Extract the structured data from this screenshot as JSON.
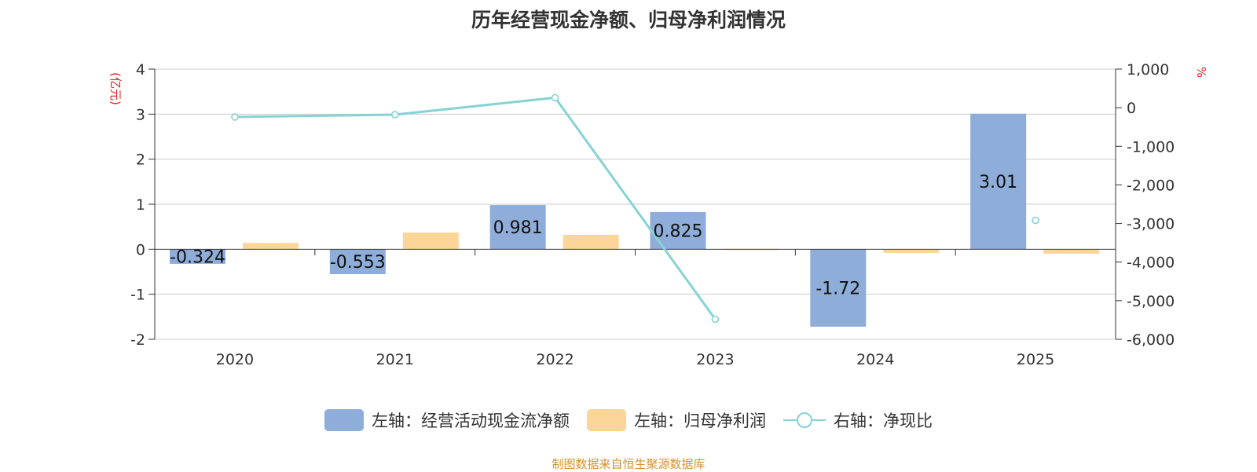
{
  "chart_data": {
    "type": "bar",
    "title": "历年经营现金净额、归母净利润情况",
    "categories": [
      "2020",
      "2021",
      "2022",
      "2023",
      "2024",
      "2025"
    ],
    "left_axis": {
      "unit": "(亿元)",
      "ylim": [
        -2,
        4
      ],
      "ticks": [
        -2,
        -1,
        0,
        1,
        2,
        3,
        4
      ],
      "tick_labels": [
        "-2",
        "-1",
        "0",
        "1",
        "2",
        "3",
        "4"
      ]
    },
    "right_axis": {
      "unit": "%",
      "ylim": [
        -6000,
        1000
      ],
      "ticks": [
        -6000,
        -5000,
        -4000,
        -3000,
        -2000,
        -1000,
        0,
        1000
      ],
      "tick_labels": [
        "-6,000",
        "-5,000",
        "-4,000",
        "-3,000",
        "-2,000",
        "-1,000",
        "0",
        "1,000"
      ]
    },
    "series": [
      {
        "name": "左轴：经营活动现金流净额",
        "type": "bar",
        "axis": "left",
        "color": "#8eadd9",
        "values": [
          -0.324,
          -0.553,
          0.981,
          0.825,
          -1.72,
          3.01
        ],
        "labels": [
          "-0.324",
          "-0.553",
          "0.981",
          "0.825",
          "-1.72",
          "3.01"
        ]
      },
      {
        "name": "左轴：归母净利润",
        "type": "bar",
        "axis": "left",
        "color": "#fcd699",
        "values": [
          0.14,
          0.37,
          0.32,
          0.01,
          -0.08,
          -0.1
        ]
      },
      {
        "name": "右轴：净现比",
        "type": "line",
        "axis": "right",
        "color": "#86d3d6",
        "values": [
          -240,
          -180,
          260,
          -5480,
          null,
          -2920
        ],
        "connected_points": [
          0,
          1,
          2,
          3
        ],
        "isolated_points": [
          5
        ]
      }
    ],
    "grid": true,
    "legend_position": "bottom-center"
  },
  "source_note": "制图数据来自恒生聚源数据库"
}
